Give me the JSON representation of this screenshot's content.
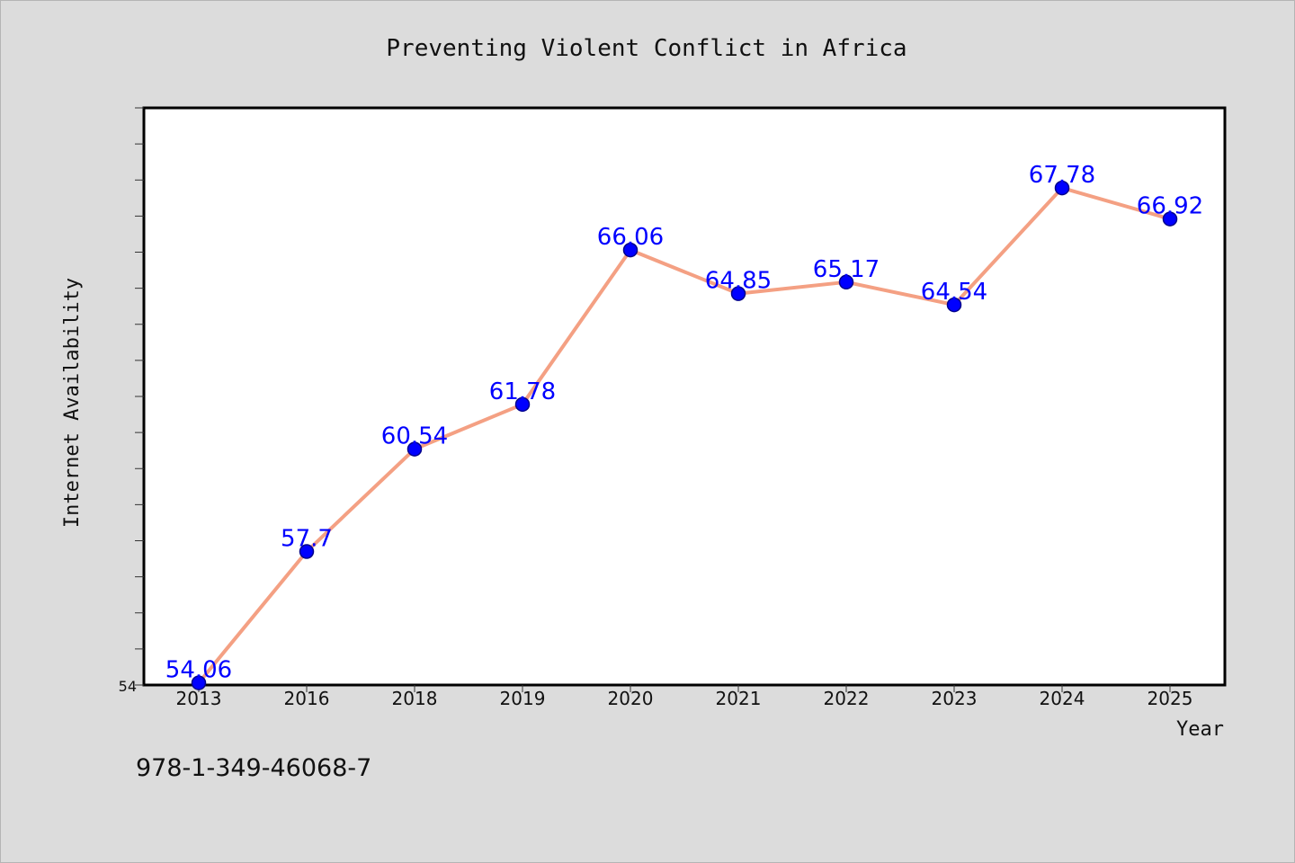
{
  "chart_data": {
    "type": "line",
    "title": "Preventing Violent Conflict in Africa",
    "xlabel": "Year",
    "ylabel": "Internet Availability",
    "categories": [
      "2013",
      "2016",
      "2018",
      "2019",
      "2020",
      "2021",
      "2022",
      "2023",
      "2024",
      "2025"
    ],
    "values": [
      54.06,
      57.7,
      60.54,
      61.78,
      66.06,
      64.85,
      65.17,
      64.54,
      67.78,
      66.92
    ],
    "data_labels": [
      "54.06",
      "57.7",
      "60.54",
      "61.78",
      "66.06",
      "64.85",
      "65.17",
      "64.54",
      "67.78",
      "66.92"
    ],
    "ylim": [
      54,
      70
    ],
    "y_tick_labels": [
      "54"
    ],
    "y_minor_tick_step": 1,
    "grid": false,
    "legend": "none",
    "colors": {
      "line": "#f4a083",
      "marker": "#0000ff",
      "marker_edge": "#00008b",
      "data_label": "#0000ff",
      "background": "#dcdcdc",
      "plot_area": "#ffffff"
    }
  },
  "footer": {
    "isbn": "978-1-349-46068-7"
  }
}
